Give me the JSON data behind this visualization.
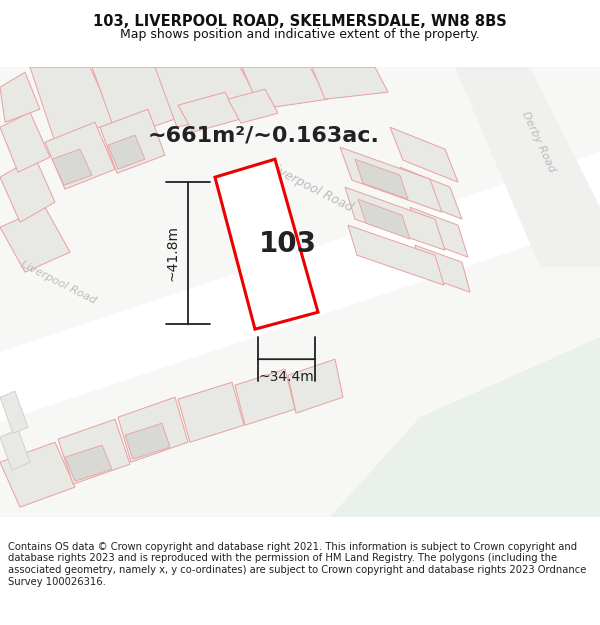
{
  "title": "103, LIVERPOOL ROAD, SKELMERSDALE, WN8 8BS",
  "subtitle": "Map shows position and indicative extent of the property.",
  "area_label": "~661m²/~0.163ac.",
  "number_label": "103",
  "width_label": "~34.4m",
  "height_label": "~41.8m",
  "copyright_text": "Contains OS data © Crown copyright and database right 2021. This information is subject to Crown copyright and database rights 2023 and is reproduced with the permission of HM Land Registry. The polygons (including the associated geometry, namely x, y co-ordinates) are subject to Crown copyright and database rights 2023 Ordnance Survey 100026316.",
  "bg_color": "#ffffff",
  "map_bg": "#f7f7f5",
  "road_fill": "#ffffff",
  "building_fill_light": "#e8e8e5",
  "building_fill_dark": "#d8d8d5",
  "green_area": "#eaf0ea",
  "red_color": "#ee0000",
  "dark_color": "#222222",
  "road_label_color": "#bbbbbb",
  "pink_edge": "#e8a0a0",
  "gray_edge": "#cccccc",
  "title_fontsize": 10.5,
  "subtitle_fontsize": 9,
  "area_label_fontsize": 16,
  "number_label_fontsize": 20,
  "measure_fontsize": 10,
  "copyright_fontsize": 7.2
}
